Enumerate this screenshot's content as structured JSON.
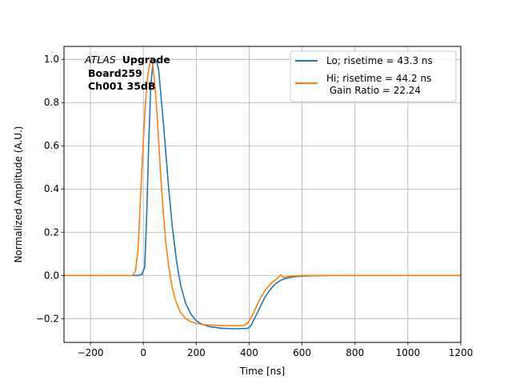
{
  "chart_data": {
    "type": "line",
    "xlabel": "Time [ns]",
    "ylabel": "Normalized Amplitude (A.U.)",
    "xlim": [
      -300,
      1200
    ],
    "ylim": [
      -0.31,
      1.06
    ],
    "xticks": [
      -200,
      0,
      200,
      400,
      600,
      800,
      1000,
      1200
    ],
    "xtick_labels": [
      "−200",
      "0",
      "200",
      "400",
      "600",
      "800",
      "1000",
      "1200"
    ],
    "yticks": [
      -0.2,
      0.0,
      0.2,
      0.4,
      0.6,
      0.8,
      1.0
    ],
    "ytick_labels": [
      "−0.2",
      "0.0",
      "0.2",
      "0.4",
      "0.6",
      "0.8",
      "1.0"
    ],
    "grid": true,
    "legend_placement": "top-right",
    "annotation": {
      "line1_italic": "ATLAS",
      "line1_bold": "Upgrade",
      "line2": "Board259",
      "line3": "Ch001 35dB"
    },
    "series": [
      {
        "name": "Lo; risetime = 43.3 ns",
        "color": "#1f77b4",
        "x": [
          -300,
          -20,
          -5,
          5,
          12,
          20,
          28,
          36,
          44,
          50,
          58,
          66,
          76,
          86,
          96,
          110,
          125,
          140,
          160,
          180,
          200,
          220,
          250,
          300,
          350,
          395,
          405,
          420,
          440,
          460,
          480,
          500,
          520,
          540,
          560,
          580,
          600,
          650,
          700,
          800,
          1200
        ],
        "y": [
          0,
          0,
          0.005,
          0.04,
          0.25,
          0.6,
          0.88,
          0.98,
          1.0,
          0.99,
          0.95,
          0.84,
          0.7,
          0.55,
          0.4,
          0.22,
          0.07,
          -0.04,
          -0.13,
          -0.18,
          -0.21,
          -0.225,
          -0.237,
          -0.245,
          -0.247,
          -0.245,
          -0.235,
          -0.2,
          -0.15,
          -0.1,
          -0.065,
          -0.038,
          -0.022,
          -0.013,
          -0.008,
          -0.005,
          -0.003,
          -0.001,
          0,
          0,
          0
        ]
      },
      {
        "name": "Hi; risetime = 44.2 ns\n Gain Ratio = 22.24",
        "color": "#ff7f0e",
        "x": [
          -300,
          -40,
          -30,
          -20,
          -10,
          0,
          8,
          16,
          24,
          30,
          36,
          42,
          50,
          58,
          66,
          76,
          86,
          96,
          108,
          120,
          140,
          160,
          180,
          200,
          230,
          260,
          300,
          350,
          380,
          395,
          410,
          425,
          440,
          460,
          480,
          500,
          510,
          520,
          530,
          545,
          560,
          600,
          700,
          1200
        ],
        "y": [
          0,
          0,
          0.02,
          0.12,
          0.38,
          0.62,
          0.8,
          0.92,
          0.98,
          1.0,
          0.97,
          0.9,
          0.78,
          0.62,
          0.45,
          0.28,
          0.14,
          0.04,
          -0.05,
          -0.11,
          -0.17,
          -0.2,
          -0.215,
          -0.222,
          -0.228,
          -0.23,
          -0.232,
          -0.233,
          -0.232,
          -0.22,
          -0.19,
          -0.15,
          -0.11,
          -0.07,
          -0.04,
          -0.02,
          -0.01,
          0.003,
          -0.01,
          -0.005,
          -0.003,
          0,
          0,
          0
        ]
      }
    ]
  }
}
